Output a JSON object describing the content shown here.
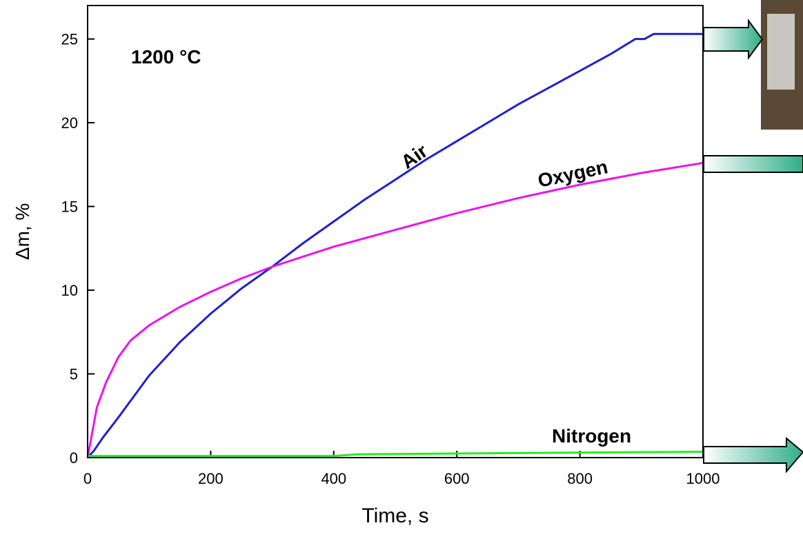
{
  "chart_data": {
    "type": "line",
    "x_label": "Time, s",
    "y_label": "Δm, %",
    "annotations": [
      "1200 °C",
      "Air",
      "Oxygen",
      "Nitrogen"
    ],
    "xlim": [
      0,
      1000
    ],
    "ylim": [
      0,
      27
    ],
    "xticks": [
      0,
      200,
      400,
      600,
      800,
      1000
    ],
    "yticks": [
      0,
      5,
      10,
      15,
      20,
      25
    ],
    "series": [
      {
        "name": "Air",
        "color": "#1f1fd0",
        "x": [
          0,
          10,
          25,
          50,
          100,
          150,
          200,
          250,
          300,
          350,
          400,
          450,
          500,
          550,
          600,
          650,
          700,
          750,
          800,
          850,
          890,
          905,
          920,
          1000
        ],
        "values": [
          0,
          0.4,
          1.2,
          2.4,
          4.9,
          6.9,
          8.6,
          10.1,
          11.4,
          12.8,
          14.1,
          15.4,
          16.6,
          17.8,
          18.9,
          20,
          21.1,
          22.1,
          23.1,
          24.1,
          25,
          25,
          25.3,
          25.3
        ]
      },
      {
        "name": "Oxygen",
        "color": "#ee11ee",
        "x": [
          0,
          5,
          15,
          30,
          50,
          70,
          100,
          150,
          200,
          250,
          300,
          350,
          400,
          500,
          600,
          700,
          800,
          900,
          1000
        ],
        "values": [
          0,
          1,
          3,
          4.5,
          6,
          7,
          7.9,
          9,
          9.9,
          10.7,
          11.4,
          12,
          12.6,
          13.6,
          14.6,
          15.5,
          16.3,
          17,
          17.6
        ]
      },
      {
        "name": "Nitrogen",
        "color": "#22ee22",
        "x": [
          0,
          400,
          440,
          800,
          1000
        ],
        "values": [
          0.1,
          0.1,
          0.2,
          0.3,
          0.35
        ]
      }
    ]
  }
}
